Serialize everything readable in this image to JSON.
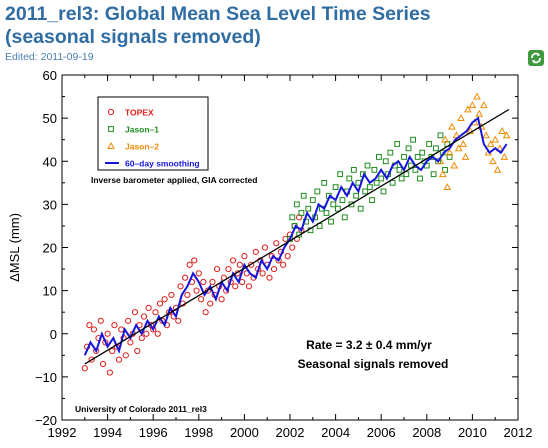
{
  "page": {
    "title": "2011_rel3: Global Mean Sea Level Time Series (seasonal signals removed)",
    "edited": "Edited: 2011-09-19",
    "refresh_icon": "refresh-icon"
  },
  "chart_data": {
    "type": "scatter",
    "title": "",
    "xlabel": "",
    "ylabel": "ΔMSL (mm)",
    "xlim": [
      1992,
      2012
    ],
    "ylim": [
      -20,
      60
    ],
    "xticks": [
      1992,
      1994,
      1996,
      1998,
      2000,
      2002,
      2004,
      2006,
      2008,
      2010,
      2012
    ],
    "yticks": [
      -20,
      -10,
      0,
      10,
      20,
      30,
      40,
      50,
      60
    ],
    "grid": false,
    "legend_position": "top-left",
    "series": [
      {
        "name": "TOPEX",
        "marker": "circle",
        "color": "#e0201c",
        "x": [
          1993.0,
          1993.1,
          1993.2,
          1993.3,
          1993.4,
          1993.5,
          1993.6,
          1993.7,
          1993.8,
          1993.9,
          1994.0,
          1994.1,
          1994.2,
          1994.3,
          1994.4,
          1994.5,
          1994.6,
          1994.7,
          1994.8,
          1994.9,
          1995.0,
          1995.1,
          1995.2,
          1995.3,
          1995.4,
          1995.5,
          1995.6,
          1995.7,
          1995.8,
          1995.9,
          1996.0,
          1996.1,
          1996.2,
          1996.3,
          1996.4,
          1996.5,
          1996.6,
          1996.7,
          1996.8,
          1996.9,
          1997.0,
          1997.1,
          1997.2,
          1997.3,
          1997.4,
          1997.5,
          1997.6,
          1997.7,
          1997.8,
          1997.9,
          1998.0,
          1998.1,
          1998.2,
          1998.3,
          1998.4,
          1998.5,
          1998.6,
          1998.7,
          1998.8,
          1998.9,
          1999.0,
          1999.1,
          1999.2,
          1999.3,
          1999.4,
          1999.5,
          1999.6,
          1999.7,
          1999.8,
          1999.9,
          2000.0,
          2000.1,
          2000.2,
          2000.3,
          2000.4,
          2000.5,
          2000.6,
          2000.7,
          2000.8,
          2000.9,
          2001.0,
          2001.1,
          2001.2,
          2001.3,
          2001.4,
          2001.5,
          2001.6,
          2001.7,
          2001.8,
          2001.9,
          2002.0,
          2002.1,
          2002.2,
          2002.3,
          2002.4,
          2002.5
        ],
        "y": [
          -8,
          -3,
          2,
          -6,
          1,
          -4,
          -1,
          3,
          -7,
          -2,
          0,
          -9,
          -4,
          2,
          -3,
          -6,
          1,
          -1,
          -5,
          3,
          -2,
          0,
          5,
          -4,
          2,
          -1,
          4,
          0,
          6,
          2,
          1,
          5,
          0,
          7,
          3,
          8,
          2,
          5,
          9,
          4,
          6,
          3,
          11,
          7,
          13,
          9,
          16,
          12,
          17,
          10,
          14,
          8,
          12,
          5,
          10,
          7,
          12,
          9,
          15,
          11,
          8,
          13,
          10,
          15,
          12,
          17,
          11,
          14,
          16,
          12,
          18,
          14,
          11,
          16,
          13,
          19,
          15,
          17,
          14,
          20,
          16,
          13,
          18,
          15,
          21,
          17,
          19,
          16,
          22,
          18,
          23,
          20,
          25,
          22,
          27,
          24
        ]
      },
      {
        "name": "Jason–1",
        "marker": "square",
        "color": "#1e8c1e",
        "x": [
          2002.0,
          2002.1,
          2002.2,
          2002.3,
          2002.4,
          2002.5,
          2002.6,
          2002.7,
          2002.8,
          2002.9,
          2003.0,
          2003.1,
          2003.2,
          2003.3,
          2003.4,
          2003.5,
          2003.6,
          2003.7,
          2003.8,
          2003.9,
          2004.0,
          2004.1,
          2004.2,
          2004.3,
          2004.4,
          2004.5,
          2004.6,
          2004.7,
          2004.8,
          2004.9,
          2005.0,
          2005.1,
          2005.2,
          2005.3,
          2005.4,
          2005.5,
          2005.6,
          2005.7,
          2005.8,
          2005.9,
          2006.0,
          2006.1,
          2006.2,
          2006.3,
          2006.4,
          2006.5,
          2006.6,
          2006.7,
          2006.8,
          2006.9,
          2007.0,
          2007.1,
          2007.2,
          2007.3,
          2007.4,
          2007.5,
          2007.6,
          2007.7,
          2007.8,
          2007.9,
          2008.0,
          2008.1,
          2008.2,
          2008.3,
          2008.4,
          2008.5,
          2008.6,
          2008.7,
          2008.8,
          2008.9,
          2009.0
        ],
        "y": [
          22,
          27,
          25,
          30,
          23,
          28,
          32,
          26,
          29,
          24,
          31,
          27,
          33,
          25,
          29,
          35,
          28,
          32,
          26,
          30,
          34,
          29,
          37,
          31,
          27,
          33,
          36,
          30,
          38,
          32,
          35,
          29,
          37,
          33,
          39,
          34,
          31,
          38,
          35,
          41,
          36,
          33,
          40,
          37,
          42,
          35,
          39,
          44,
          38,
          36,
          41,
          37,
          43,
          39,
          45,
          38,
          41,
          36,
          42,
          40,
          39,
          44,
          41,
          37,
          43,
          40,
          46,
          42,
          38,
          44,
          41
        ]
      },
      {
        "name": "Jason–2",
        "marker": "triangle",
        "color": "#f08a00",
        "x": [
          2008.6,
          2008.7,
          2008.8,
          2008.9,
          2009.0,
          2009.1,
          2009.2,
          2009.3,
          2009.4,
          2009.5,
          2009.6,
          2009.7,
          2009.8,
          2009.9,
          2010.0,
          2010.1,
          2010.2,
          2010.3,
          2010.4,
          2010.5,
          2010.6,
          2010.7,
          2010.8,
          2010.9,
          2011.0,
          2011.1,
          2011.2,
          2011.3,
          2011.4,
          2011.5
        ],
        "y": [
          40,
          37,
          45,
          34,
          42,
          48,
          39,
          46,
          43,
          50,
          44,
          41,
          52,
          47,
          53,
          49,
          55,
          51,
          48,
          53,
          46,
          42,
          44,
          40,
          45,
          38,
          43,
          47,
          41,
          46
        ]
      },
      {
        "name": "60–day smoothing",
        "marker": "line",
        "color": "#1515e0",
        "x": [
          1993.0,
          1993.25,
          1993.5,
          1993.75,
          1994.0,
          1994.25,
          1994.5,
          1994.75,
          1995.0,
          1995.25,
          1995.5,
          1995.75,
          1996.0,
          1996.25,
          1996.5,
          1996.75,
          1997.0,
          1997.25,
          1997.5,
          1997.75,
          1998.0,
          1998.25,
          1998.5,
          1998.75,
          1999.0,
          1999.25,
          1999.5,
          1999.75,
          2000.0,
          2000.25,
          2000.5,
          2000.75,
          2001.0,
          2001.25,
          2001.5,
          2001.75,
          2002.0,
          2002.25,
          2002.5,
          2002.75,
          2003.0,
          2003.25,
          2003.5,
          2003.75,
          2004.0,
          2004.25,
          2004.5,
          2004.75,
          2005.0,
          2005.25,
          2005.5,
          2005.75,
          2006.0,
          2006.25,
          2006.5,
          2006.75,
          2007.0,
          2007.25,
          2007.5,
          2007.75,
          2008.0,
          2008.25,
          2008.5,
          2008.75,
          2009.0,
          2009.25,
          2009.5,
          2009.75,
          2010.0,
          2010.25,
          2010.5,
          2010.75,
          2011.0,
          2011.25,
          2011.5
        ],
        "y": [
          -5,
          -2,
          -4,
          0,
          -3,
          -1,
          -4,
          1,
          -1,
          2,
          0,
          3,
          1,
          4,
          2,
          6,
          4,
          9,
          11,
          14,
          12,
          9,
          11,
          8,
          12,
          10,
          14,
          12,
          16,
          14,
          13,
          17,
          15,
          18,
          17,
          20,
          22,
          25,
          24,
          28,
          26,
          30,
          29,
          32,
          31,
          34,
          32,
          35,
          33,
          37,
          35,
          36,
          38,
          36,
          39,
          40,
          38,
          41,
          39,
          38,
          40,
          41,
          40,
          42,
          43,
          45,
          46,
          47,
          49,
          50,
          44,
          42,
          43,
          42,
          44
        ]
      },
      {
        "name": "trend",
        "marker": "line",
        "color": "#000000",
        "x": [
          1993.0,
          2011.6
        ],
        "y": [
          -7,
          52
        ]
      }
    ],
    "annotations": {
      "note": "Inverse barometer applied, GIA corrected",
      "rate": "Rate = 3.2 ± 0.4 mm/yr",
      "seasonal": "Seasonal signals removed",
      "credit": "University of Colorado 2011_rel3"
    }
  }
}
